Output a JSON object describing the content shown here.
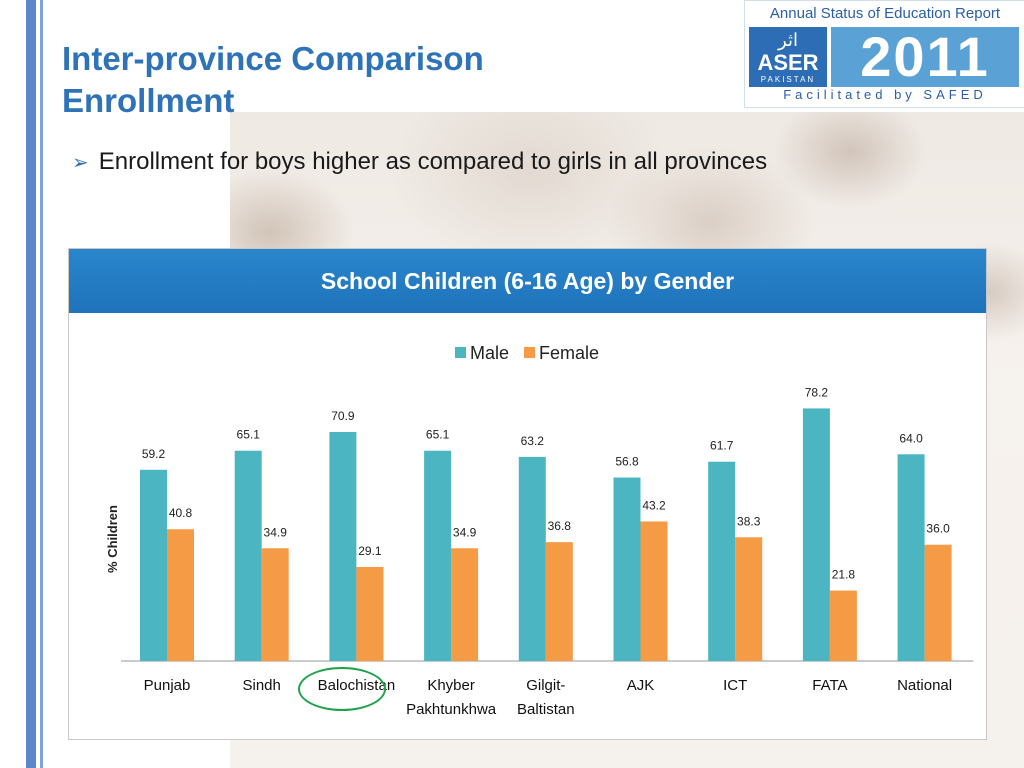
{
  "slide": {
    "title_line1": "Inter-province Comparison",
    "title_line2": "Enrollment",
    "bullet": "Enrollment for boys higher as compared to girls in all provinces"
  },
  "logo": {
    "top_text": "Annual Status of Education Report",
    "urdu": "اثر",
    "aser": "ASER",
    "pakistan": "PAKISTAN",
    "year": "2011",
    "bottom_text": "Facilitated by SAFED"
  },
  "colors": {
    "male": "#4bb5c1",
    "female": "#f59a45",
    "title_blue": "#2e73b8",
    "highlight_circle": "#1ea34a"
  },
  "chart_data": {
    "type": "bar",
    "title": "School Children (6-16 Age) by Gender",
    "ylabel": "% Children",
    "xlabel": "",
    "ylim": [
      0,
      85
    ],
    "legend": "top-center",
    "grid": false,
    "categories": [
      "Punjab",
      "Sindh",
      "Balochistan",
      "Khyber Pakhtunkhwa",
      "Gilgit-Baltistan",
      "AJK",
      "ICT",
      "FATA",
      "National"
    ],
    "category_lines": [
      [
        "Punjab"
      ],
      [
        "Sindh"
      ],
      [
        "Balochistan"
      ],
      [
        "Khyber",
        "Pakhtunkhwa"
      ],
      [
        "Gilgit-",
        "Baltistan"
      ],
      [
        "AJK"
      ],
      [
        "ICT"
      ],
      [
        "FATA"
      ],
      [
        "National"
      ]
    ],
    "series": [
      {
        "name": "Male",
        "values": [
          59.2,
          65.1,
          70.9,
          65.1,
          63.2,
          56.8,
          61.7,
          78.2,
          64.0
        ]
      },
      {
        "name": "Female",
        "values": [
          40.8,
          34.9,
          29.1,
          34.9,
          36.8,
          43.2,
          38.3,
          21.8,
          36.0
        ]
      }
    ],
    "highlighted_category": "Balochistan"
  }
}
